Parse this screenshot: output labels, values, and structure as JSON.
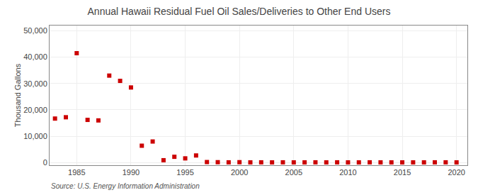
{
  "chart_data": {
    "type": "scatter",
    "title": "Annual Hawaii Residual Fuel Oil Sales/Deliveries to Other End Users",
    "ylabel": "Thousand Gallons",
    "source": "Source: U.S. Energy Information Administration",
    "x": [
      1983,
      1984,
      1985,
      1986,
      1987,
      1988,
      1989,
      1990,
      1991,
      1992,
      1993,
      1994,
      1995,
      1996,
      1997,
      1998,
      1999,
      2000,
      2001,
      2002,
      2003,
      2004,
      2005,
      2006,
      2007,
      2008,
      2009,
      2010,
      2011,
      2012,
      2013,
      2014,
      2015,
      2016,
      2017,
      2018,
      2019,
      2020
    ],
    "values": [
      16700,
      17200,
      41500,
      16200,
      16000,
      33000,
      31000,
      28500,
      6400,
      8000,
      900,
      2200,
      1600,
      2700,
      200,
      150,
      100,
      150,
      80,
      100,
      80,
      100,
      80,
      80,
      100,
      80,
      100,
      80,
      80,
      100,
      80,
      80,
      80,
      80,
      80,
      100,
      100,
      80
    ],
    "color": "#cc0000",
    "marker": "square",
    "xlim": [
      1982.5,
      2021
    ],
    "ylim": [
      -1000,
      52000
    ],
    "xticks": [
      1985,
      1990,
      1995,
      2000,
      2005,
      2010,
      2015,
      2020
    ],
    "yticks": [
      0,
      {
        "value": 10000,
        "label": "10,000"
      },
      {
        "value": 20000,
        "label": "20,000"
      },
      {
        "value": 30000,
        "label": "30,000"
      },
      {
        "value": 40000,
        "label": "40,000"
      },
      {
        "value": 50000,
        "label": "50,000"
      }
    ],
    "grid": true
  }
}
